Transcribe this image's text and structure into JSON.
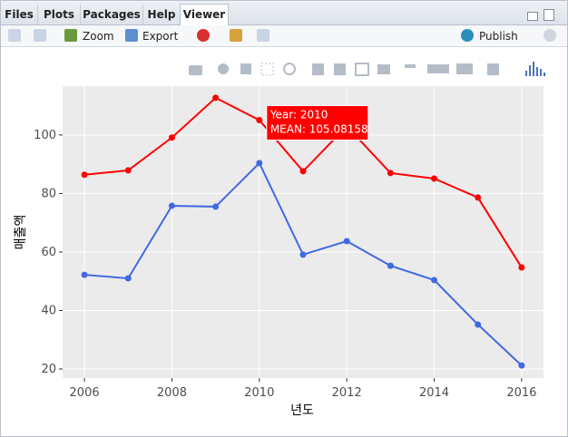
{
  "tabs": [
    "Files",
    "Plots",
    "Packages",
    "Help",
    "Viewer"
  ],
  "toolbar": {
    "zoom": "Zoom",
    "export": "Export",
    "publish": "Publish"
  },
  "chart_data": {
    "type": "line",
    "x": [
      2006,
      2007,
      2008,
      2009,
      2010,
      2011,
      2012,
      2013,
      2014,
      2015,
      2016
    ],
    "series": [
      {
        "color": "#ff0000",
        "values": [
          86.4,
          87.9,
          99.1,
          112.7,
          105.08158,
          87.6,
          103.0,
          87.0,
          85.1,
          78.6,
          54.7
        ]
      },
      {
        "color": "#4169e1",
        "values": [
          52.2,
          51.0,
          75.8,
          75.5,
          90.4,
          59.1,
          63.7,
          55.3,
          50.4,
          35.2,
          21.2
        ]
      }
    ],
    "xlabel": "년도",
    "ylabel": "매출액",
    "xlim": [
      2005.5,
      2016.5
    ],
    "ylim": [
      16.9,
      116.7
    ],
    "xticks": [
      2006,
      2008,
      2010,
      2012,
      2014,
      2016
    ],
    "yticks": [
      20,
      40,
      60,
      80,
      100
    ],
    "grid": true,
    "tooltip": [
      "Year: 2010",
      "MEAN: 105.08158"
    ]
  }
}
